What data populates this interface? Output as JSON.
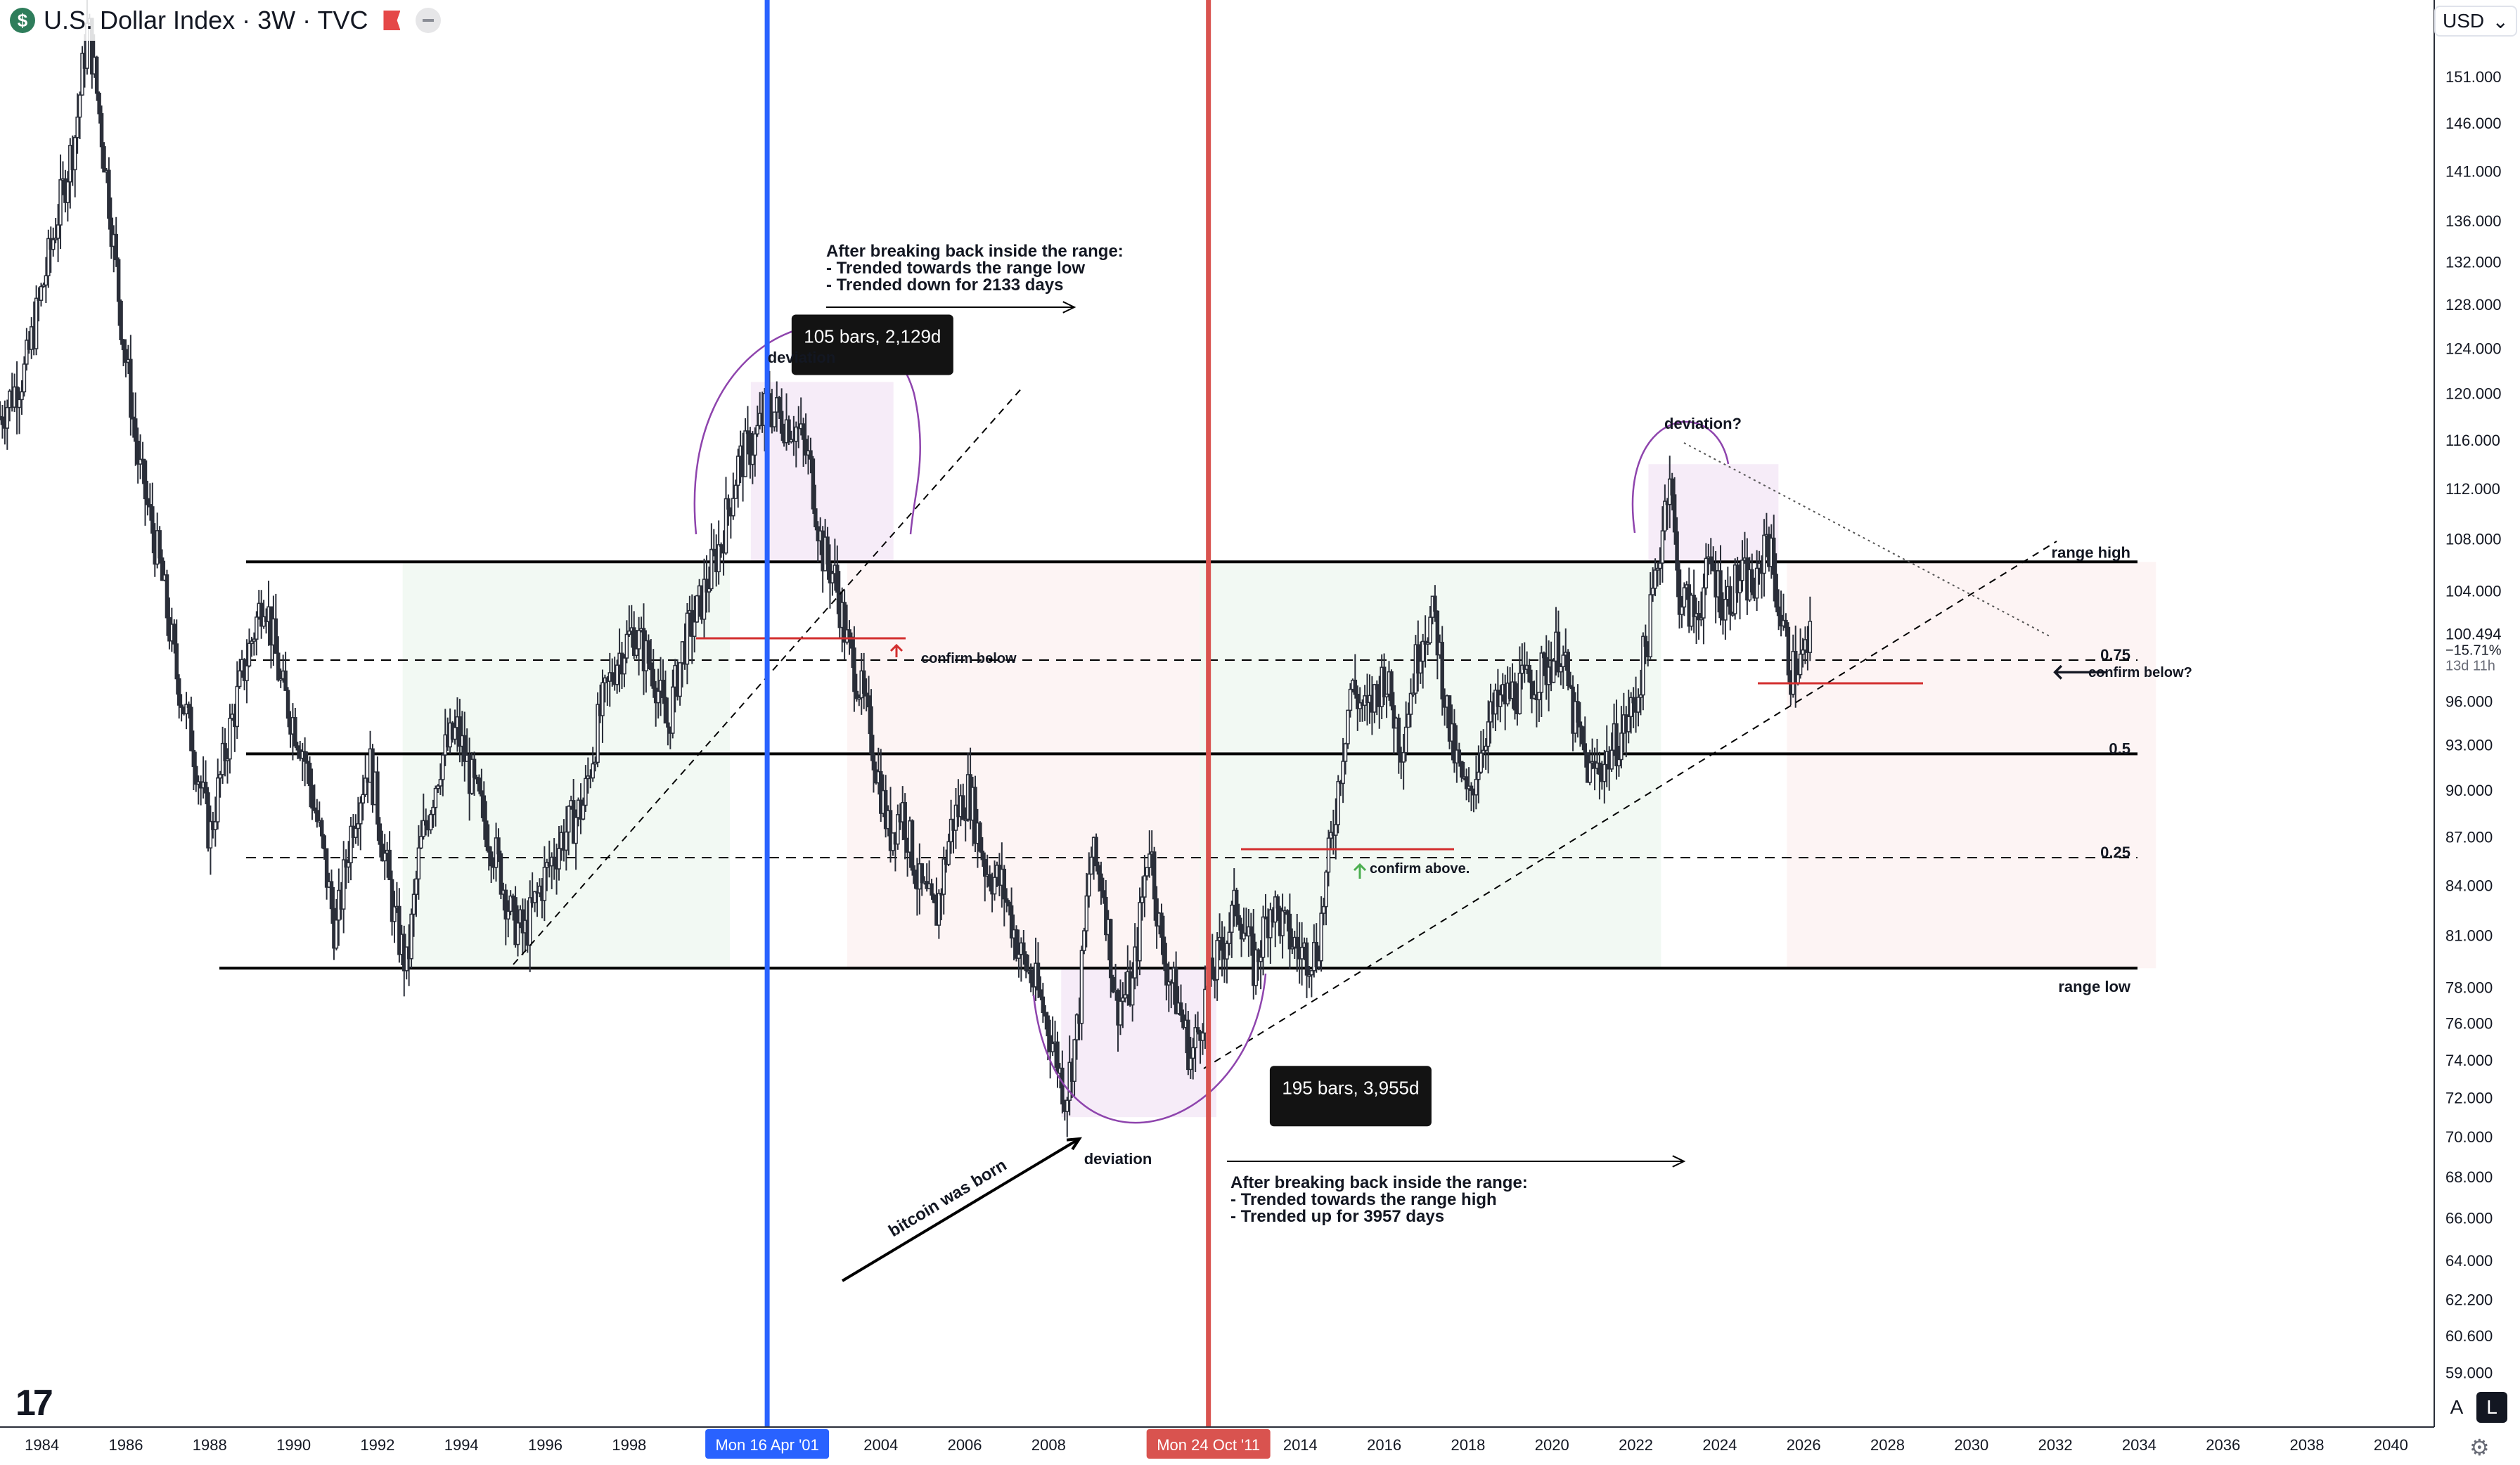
{
  "header": {
    "badge": "$",
    "title": "U.S. Dollar Index · 3W · TVC"
  },
  "currency": {
    "label": "USD",
    "caret": "⌄"
  },
  "logo": "17",
  "scale_buttons": {
    "auto": "A",
    "log": "L"
  },
  "settings_icon": "⚙",
  "chart_data": {
    "type": "candlestick",
    "log_scale": true,
    "x_range": [
      1983.0,
      2041.0
    ],
    "y_range": [
      57.0,
      158.0
    ],
    "x_tick_labels": [
      "1984",
      "1986",
      "1988",
      "1990",
      "1992",
      "1994",
      "1996",
      "1998",
      "2004",
      "2006",
      "2008",
      "2014",
      "2016",
      "2018",
      "2020",
      "2022",
      "2024",
      "2026",
      "2028",
      "2030",
      "2032",
      "2034",
      "2036",
      "2038",
      "2040"
    ],
    "x_tick_values": [
      1984,
      1986,
      1988,
      1990,
      1992,
      1994,
      1996,
      1998,
      2004,
      2006,
      2008,
      2014,
      2016,
      2018,
      2020,
      2022,
      2024,
      2026,
      2028,
      2030,
      2032,
      2034,
      2036,
      2038,
      2040
    ],
    "y_tick_labels": [
      "151.000",
      "146.000",
      "141.000",
      "136.000",
      "132.000",
      "128.000",
      "124.000",
      "120.000",
      "116.000",
      "112.000",
      "108.000",
      "104.000",
      "96.000",
      "93.000",
      "90.000",
      "87.000",
      "84.000",
      "81.000",
      "78.000",
      "76.000",
      "74.000",
      "72.000",
      "70.000",
      "68.000",
      "66.000",
      "64.000",
      "62.200",
      "60.600",
      "59.000"
    ],
    "y_tick_values": [
      151,
      146,
      141,
      136,
      132,
      128,
      124,
      120,
      116,
      112,
      108,
      104,
      96,
      93,
      90,
      87,
      84,
      81,
      78,
      76,
      74,
      72,
      70,
      68,
      66,
      64,
      62.2,
      60.6,
      59
    ],
    "price_series": [
      [
        1983.0,
        118
      ],
      [
        1983.6,
        122
      ],
      [
        1984.2,
        133
      ],
      [
        1984.8,
        145
      ],
      [
        1985.1,
        157
      ],
      [
        1985.5,
        142
      ],
      [
        1985.9,
        126
      ],
      [
        1986.3,
        114
      ],
      [
        1986.8,
        106
      ],
      [
        1987.2,
        98
      ],
      [
        1987.6,
        93
      ],
      [
        1988.0,
        87
      ],
      [
        1988.4,
        93
      ],
      [
        1988.8,
        98
      ],
      [
        1989.3,
        104
      ],
      [
        1989.7,
        97
      ],
      [
        1990.2,
        93
      ],
      [
        1990.7,
        86
      ],
      [
        1991.0,
        81
      ],
      [
        1991.4,
        88
      ],
      [
        1991.8,
        92
      ],
      [
        1992.1,
        87
      ],
      [
        1992.4,
        82
      ],
      [
        1992.7,
        79
      ],
      [
        1993.0,
        86
      ],
      [
        1993.5,
        92
      ],
      [
        1993.9,
        94
      ],
      [
        1994.3,
        90
      ],
      [
        1994.8,
        86
      ],
      [
        1995.2,
        82
      ],
      [
        1995.5,
        81
      ],
      [
        1995.9,
        84
      ],
      [
        1996.4,
        87
      ],
      [
        1996.9,
        89
      ],
      [
        1997.3,
        95
      ],
      [
        1997.7,
        99
      ],
      [
        1998.1,
        101
      ],
      [
        1998.6,
        98
      ],
      [
        1998.9,
        94
      ],
      [
        1999.3,
        100
      ],
      [
        1999.7,
        103
      ],
      [
        2000.2,
        108
      ],
      [
        2000.6,
        114
      ],
      [
        2001.0,
        116
      ],
      [
        2001.3,
        119
      ],
      [
        2001.6,
        118
      ],
      [
        2002.0,
        117
      ],
      [
        2002.3,
        114
      ],
      [
        2002.6,
        107
      ],
      [
        2002.9,
        105
      ],
      [
        2003.2,
        100
      ],
      [
        2003.5,
        97
      ],
      [
        2003.8,
        93
      ],
      [
        2004.2,
        87
      ],
      [
        2004.5,
        89
      ],
      [
        2004.9,
        84
      ],
      [
        2005.3,
        82
      ],
      [
        2005.7,
        88
      ],
      [
        2006.1,
        90
      ],
      [
        2006.5,
        85
      ],
      [
        2006.9,
        84
      ],
      [
        2007.3,
        80
      ],
      [
        2007.7,
        78
      ],
      [
        2008.1,
        75
      ],
      [
        2008.4,
        72
      ],
      [
        2008.7,
        76
      ],
      [
        2009.0,
        86
      ],
      [
        2009.3,
        84
      ],
      [
        2009.6,
        77
      ],
      [
        2010.0,
        78
      ],
      [
        2010.4,
        87
      ],
      [
        2010.7,
        80
      ],
      [
        2011.1,
        77
      ],
      [
        2011.4,
        74
      ],
      [
        2011.8,
        78
      ],
      [
        2012.1,
        80
      ],
      [
        2012.5,
        83
      ],
      [
        2012.9,
        79
      ],
      [
        2013.3,
        83
      ],
      [
        2013.7,
        81
      ],
      [
        2014.0,
        80
      ],
      [
        2014.4,
        80
      ],
      [
        2014.8,
        88
      ],
      [
        2015.2,
        97
      ],
      [
        2015.6,
        95
      ],
      [
        2016.0,
        98
      ],
      [
        2016.4,
        93
      ],
      [
        2016.9,
        101
      ],
      [
        2017.2,
        102
      ],
      [
        2017.6,
        93
      ],
      [
        2018.0,
        89
      ],
      [
        2018.4,
        94
      ],
      [
        2018.8,
        96
      ],
      [
        2019.3,
        97
      ],
      [
        2019.8,
        98
      ],
      [
        2020.2,
        100
      ],
      [
        2020.5,
        95
      ],
      [
        2020.9,
        91
      ],
      [
        2021.3,
        92
      ],
      [
        2021.7,
        94
      ],
      [
        2022.0,
        96
      ],
      [
        2022.3,
        101
      ],
      [
        2022.6,
        108
      ],
      [
        2022.8,
        114
      ],
      [
        2023.0,
        104
      ],
      [
        2023.4,
        102
      ],
      [
        2023.8,
        106
      ],
      [
        2024.1,
        103
      ],
      [
        2024.5,
        105
      ],
      [
        2024.9,
        104
      ],
      [
        2025.1,
        109
      ],
      [
        2025.4,
        103
      ],
      [
        2025.7,
        98
      ],
      [
        2026.0,
        99
      ],
      [
        2026.2,
        100.5
      ]
    ],
    "range_levels": [
      {
        "label": "range high",
        "value": 106.2,
        "style": "solid"
      },
      {
        "label": "0.75",
        "value": 98.9,
        "style": "dashed"
      },
      {
        "label": "0.5",
        "value": 92.4,
        "style": "solid"
      },
      {
        "label": "0.25",
        "value": 85.7,
        "style": "dashed"
      },
      {
        "label": "range low",
        "value": 79.1,
        "style": "solid"
      }
    ],
    "vertical_markers": [
      {
        "label": "Mon 16 Apr '01",
        "x": 2001.29,
        "color": "#2962ff"
      },
      {
        "label": "Mon 24 Oct '11",
        "x": 2011.81,
        "color": "#d9534f"
      }
    ],
    "shaded_zones": [
      {
        "type": "green",
        "x": [
          1992.6,
          2000.4
        ],
        "y": [
          79.1,
          106.2
        ]
      },
      {
        "type": "red",
        "x": [
          2003.2,
          2011.6
        ],
        "y": [
          79.1,
          106.2
        ]
      },
      {
        "type": "green",
        "x": [
          2011.6,
          2022.6
        ],
        "y": [
          79.1,
          106.2
        ]
      },
      {
        "type": "red",
        "x": [
          2025.6,
          2034.4
        ],
        "y": [
          79.1,
          106.2
        ]
      },
      {
        "type": "purple",
        "x": [
          2000.9,
          2004.3
        ],
        "y": [
          106.2,
          121
        ]
      },
      {
        "type": "purple",
        "x": [
          2008.3,
          2012.0
        ],
        "y": [
          71,
          79.1
        ]
      },
      {
        "type": "purple",
        "x": [
          2022.3,
          2025.4
        ],
        "y": [
          106.2,
          114
        ]
      }
    ],
    "measure_boxes": [
      {
        "label": "105 bars, 2,129d",
        "x": 2003.8,
        "y": 124.5
      },
      {
        "label": "195 bars, 3,955d",
        "x": 2015.2,
        "y": 72.2
      }
    ],
    "annotations": {
      "top_note": [
        "After breaking back inside the range:",
        "- Trended towards the range low",
        "- Trended down for 2133 days"
      ],
      "bottom_note": [
        "After breaking back inside the range:",
        "- Trended towards the range high",
        "- Trended up for 3957 days"
      ],
      "deviation_1": "deviation",
      "deviation_2": "deviation",
      "deviation_3": "deviation?",
      "confirm_below": "confirm below",
      "confirm_above": "confirm above.",
      "confirm_below_q": "confirm below?",
      "bitcoin": "bitcoin was born",
      "arrow_left": "🡐"
    },
    "last_price": {
      "value": "100.494",
      "change": "−15.71%",
      "countdown": "13d 11h"
    }
  }
}
